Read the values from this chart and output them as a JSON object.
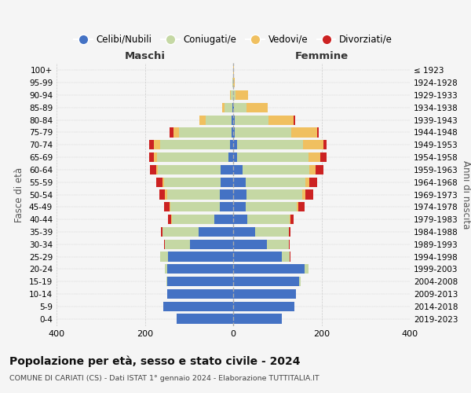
{
  "age_groups": [
    "100+",
    "95-99",
    "90-94",
    "85-89",
    "80-84",
    "75-79",
    "70-74",
    "65-69",
    "60-64",
    "55-59",
    "50-54",
    "45-49",
    "40-44",
    "35-39",
    "30-34",
    "25-29",
    "20-24",
    "15-19",
    "10-14",
    "5-9",
    "0-4"
  ],
  "birth_years": [
    "≤ 1923",
    "1924-1928",
    "1929-1933",
    "1934-1938",
    "1939-1943",
    "1944-1948",
    "1949-1953",
    "1954-1958",
    "1959-1963",
    "1964-1968",
    "1969-1973",
    "1974-1978",
    "1979-1983",
    "1984-1988",
    "1989-1993",
    "1994-1998",
    "1999-2003",
    "2004-2008",
    "2009-2013",
    "2014-2018",
    "2019-2023"
  ],
  "colors": {
    "celibi": "#4472c4",
    "coniugati": "#c5d8a4",
    "vedovi": "#f0c060",
    "divorziati": "#cc2222"
  },
  "males": {
    "celibi": [
      0,
      0,
      0,
      2,
      4,
      4,
      8,
      10,
      28,
      28,
      30,
      30,
      42,
      78,
      98,
      148,
      150,
      150,
      150,
      158,
      128
    ],
    "coniugati": [
      0,
      1,
      5,
      18,
      58,
      118,
      158,
      162,
      142,
      128,
      120,
      112,
      96,
      82,
      56,
      18,
      4,
      2,
      0,
      0,
      0
    ],
    "vedovi": [
      0,
      0,
      2,
      5,
      14,
      14,
      14,
      7,
      4,
      4,
      4,
      2,
      2,
      0,
      0,
      0,
      0,
      0,
      0,
      0,
      0
    ],
    "divorziati": [
      0,
      0,
      0,
      0,
      0,
      8,
      10,
      12,
      14,
      14,
      14,
      12,
      7,
      4,
      2,
      0,
      0,
      0,
      0,
      0,
      0
    ]
  },
  "females": {
    "nubili": [
      0,
      0,
      0,
      2,
      4,
      4,
      8,
      8,
      22,
      28,
      30,
      28,
      32,
      50,
      76,
      110,
      162,
      150,
      142,
      138,
      110
    ],
    "coniugate": [
      0,
      0,
      5,
      28,
      76,
      128,
      150,
      162,
      150,
      136,
      126,
      116,
      96,
      76,
      50,
      18,
      8,
      2,
      0,
      0,
      0
    ],
    "vedove": [
      1,
      4,
      28,
      48,
      56,
      58,
      46,
      28,
      14,
      8,
      8,
      4,
      2,
      0,
      0,
      0,
      0,
      0,
      0,
      0,
      0
    ],
    "divorziate": [
      0,
      0,
      0,
      0,
      4,
      4,
      8,
      14,
      18,
      18,
      18,
      14,
      7,
      4,
      2,
      2,
      0,
      0,
      0,
      0,
      0
    ]
  },
  "xlim": 400,
  "title": "Popolazione per età, sesso e stato civile - 2024",
  "subtitle": "COMUNE DI CARIATI (CS) - Dati ISTAT 1° gennaio 2024 - Elaborazione TUTTITALIA.IT",
  "ylabel_left": "Fasce di età",
  "ylabel_right": "Anni di nascita",
  "xlabel_left": "Maschi",
  "xlabel_right": "Femmine",
  "legend_labels": [
    "Celibi/Nubili",
    "Coniugati/e",
    "Vedovi/e",
    "Divorziati/e"
  ],
  "bg_color": "#f5f5f5",
  "grid_color": "#cccccc"
}
